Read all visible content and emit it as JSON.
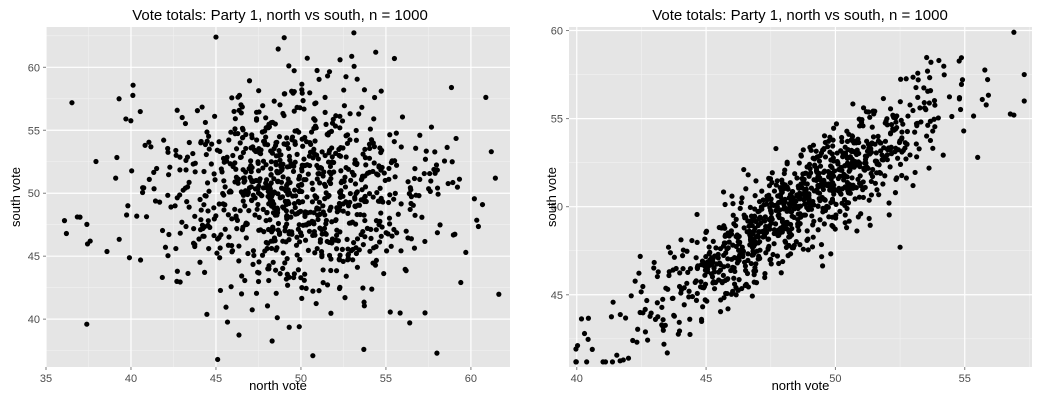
{
  "chart_data": [
    {
      "type": "scatter",
      "title": "Vote totals: Party 1, north vs south, n = 1000",
      "xlabel": "north vote",
      "ylabel": "south vote",
      "xlim": [
        35,
        62.3
      ],
      "ylim": [
        36.2,
        63.2
      ],
      "xticks": [
        35,
        40,
        45,
        50,
        55,
        60
      ],
      "yticks": [
        40,
        45,
        50,
        55,
        60
      ],
      "grid": true,
      "n_points": 1000,
      "x_mean": 49.5,
      "y_mean": 50.0,
      "x_sd": 4.2,
      "y_sd": 4.2,
      "correlation": 0.0,
      "highlight_points": [
        {
          "x": 36.2,
          "y": 46.8
        },
        {
          "x": 37.0,
          "y": 48.1
        },
        {
          "x": 37.4,
          "y": 39.6
        },
        {
          "x": 37.6,
          "y": 46.2
        },
        {
          "x": 39.1,
          "y": 51.2
        },
        {
          "x": 39.3,
          "y": 57.5
        },
        {
          "x": 39.7,
          "y": 55.9
        },
        {
          "x": 45.0,
          "y": 62.4
        },
        {
          "x": 45.1,
          "y": 36.8
        },
        {
          "x": 50.7,
          "y": 37.1
        },
        {
          "x": 53.7,
          "y": 37.6
        },
        {
          "x": 54.4,
          "y": 61.2
        },
        {
          "x": 55.5,
          "y": 60.7
        },
        {
          "x": 57.3,
          "y": 40.5
        },
        {
          "x": 59.7,
          "y": 45.3
        },
        {
          "x": 61.2,
          "y": 53.3
        },
        {
          "x": 58.9,
          "y": 52.5
        },
        {
          "x": 42.7,
          "y": 43.0
        },
        {
          "x": 49.9,
          "y": 39.4
        },
        {
          "x": 52.3,
          "y": 60.6
        }
      ]
    },
    {
      "type": "scatter",
      "title": "Vote totals: Party 1, north vs south, n = 1000",
      "xlabel": "north vote",
      "ylabel": "south vote",
      "xlim": [
        39.7,
        57.6
      ],
      "ylim": [
        40.9,
        60.2
      ],
      "xticks": [
        40,
        45,
        50,
        55
      ],
      "yticks": [
        45,
        50,
        55,
        60
      ],
      "grid": true,
      "n_points": 1000,
      "x_mean": 48.5,
      "y_mean": 50.0,
      "x_sd": 3.0,
      "y_sd": 3.3,
      "correlation": 0.9,
      "highlight_points": [
        {
          "x": 40.3,
          "y": 42.8
        },
        {
          "x": 40.6,
          "y": 41.9
        },
        {
          "x": 41.8,
          "y": 41.3
        },
        {
          "x": 42.0,
          "y": 41.4
        },
        {
          "x": 43.5,
          "y": 41.7
        },
        {
          "x": 56.9,
          "y": 59.9
        },
        {
          "x": 57.3,
          "y": 57.5
        },
        {
          "x": 57.3,
          "y": 56.0
        },
        {
          "x": 56.9,
          "y": 55.2
        },
        {
          "x": 55.5,
          "y": 52.8
        },
        {
          "x": 54.0,
          "y": 58.3
        },
        {
          "x": 47.7,
          "y": 53.3
        },
        {
          "x": 46.0,
          "y": 50.6
        },
        {
          "x": 52.5,
          "y": 47.7
        },
        {
          "x": 53.0,
          "y": 51.2
        }
      ]
    }
  ]
}
